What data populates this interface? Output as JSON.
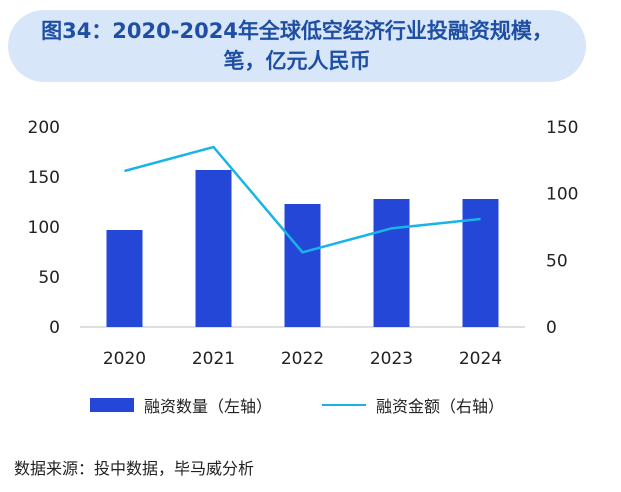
{
  "header": {
    "title_line1": "图34：2020-2024年全球低空经济行业投融资规模，",
    "title_line2": "笔，亿元人民币"
  },
  "chart_data": {
    "type": "bar+line",
    "title": "2020-2024年全球低空经济行业投融资规模，笔，亿元人民币",
    "categories": [
      "2020",
      "2021",
      "2022",
      "2023",
      "2024"
    ],
    "series": [
      {
        "name": "融资数量（左轴）",
        "type": "bar",
        "axis": "left",
        "color": "#2447d8",
        "values": [
          97,
          157,
          123,
          128,
          128
        ]
      },
      {
        "name": "融资金额（右轴）",
        "type": "line",
        "axis": "right",
        "color": "#18b4e8",
        "values": [
          117,
          135,
          56,
          74,
          81
        ]
      }
    ],
    "left_axis": {
      "min": 0,
      "max": 200,
      "ticks": [
        "0",
        "50",
        "100",
        "150",
        "200"
      ]
    },
    "right_axis": {
      "min": 0,
      "max": 150,
      "ticks": [
        "0",
        "50",
        "100",
        "150"
      ]
    },
    "legend_position": "bottom"
  },
  "legend": {
    "bar_label": "融资数量（左轴）",
    "line_label": "融资金额（右轴）"
  },
  "footer": {
    "source": "数据来源：投中数据，毕马威分析"
  }
}
